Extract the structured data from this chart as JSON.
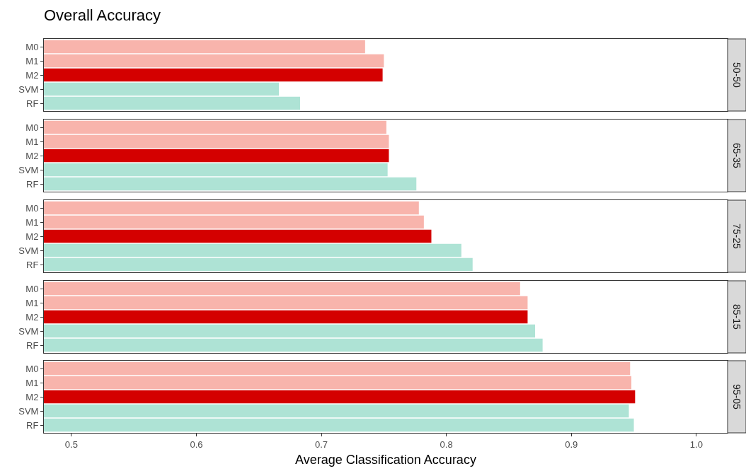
{
  "chart_data": [
    {
      "type": "bar",
      "title": "Overall Accuracy",
      "orientation": "horizontal",
      "categories": [
        "M0",
        "M1",
        "M2",
        "SVM",
        "RF"
      ],
      "values": [
        0.735,
        0.75,
        0.749,
        0.666,
        0.683
      ],
      "colors": [
        "#f8b4ac",
        "#f8b4ac",
        "#d40000",
        "#aee3d5",
        "#aee3d5"
      ],
      "xlim": [
        0.478,
        1.025
      ],
      "xticks": [
        0.5,
        0.6,
        0.7,
        0.8,
        0.9,
        1.0
      ],
      "tick_labels": "y",
      "grid": false,
      "annotations": [
        "50-50"
      ]
    },
    {
      "type": "bar",
      "orientation": "horizontal",
      "categories": [
        "M0",
        "M1",
        "M2",
        "SVM",
        "RF"
      ],
      "values": [
        0.752,
        0.754,
        0.754,
        0.753,
        0.776
      ],
      "colors": [
        "#f8b4ac",
        "#f8b4ac",
        "#d40000",
        "#aee3d5",
        "#aee3d5"
      ],
      "xlim": [
        0.478,
        1.025
      ],
      "xticks": [
        0.5,
        0.6,
        0.7,
        0.8,
        0.9,
        1.0
      ],
      "tick_labels": "y",
      "grid": false,
      "annotations": [
        "65-35"
      ]
    },
    {
      "type": "bar",
      "orientation": "horizontal",
      "categories": [
        "M0",
        "M1",
        "M2",
        "SVM",
        "RF"
      ],
      "values": [
        0.778,
        0.782,
        0.788,
        0.812,
        0.821
      ],
      "colors": [
        "#f8b4ac",
        "#f8b4ac",
        "#d40000",
        "#aee3d5",
        "#aee3d5"
      ],
      "xlim": [
        0.478,
        1.025
      ],
      "xticks": [
        0.5,
        0.6,
        0.7,
        0.8,
        0.9,
        1.0
      ],
      "tick_labels": "y",
      "grid": false,
      "annotations": [
        "75-25"
      ]
    },
    {
      "type": "bar",
      "orientation": "horizontal",
      "categories": [
        "M0",
        "M1",
        "M2",
        "SVM",
        "RF"
      ],
      "values": [
        0.859,
        0.865,
        0.865,
        0.871,
        0.877
      ],
      "colors": [
        "#f8b4ac",
        "#f8b4ac",
        "#d40000",
        "#aee3d5",
        "#aee3d5"
      ],
      "xlim": [
        0.478,
        1.025
      ],
      "xticks": [
        0.5,
        0.6,
        0.7,
        0.8,
        0.9,
        1.0
      ],
      "tick_labels": "y",
      "grid": false,
      "annotations": [
        "85-15"
      ]
    },
    {
      "type": "bar",
      "orientation": "horizontal",
      "xlabel": "Average Classification Accuracy",
      "categories": [
        "M0",
        "M1",
        "M2",
        "SVM",
        "RF"
      ],
      "values": [
        0.947,
        0.948,
        0.951,
        0.946,
        0.95
      ],
      "colors": [
        "#f8b4ac",
        "#f8b4ac",
        "#d40000",
        "#aee3d5",
        "#aee3d5"
      ],
      "xlim": [
        0.478,
        1.025
      ],
      "xticks": [
        0.5,
        0.6,
        0.7,
        0.8,
        0.9,
        {
          "value": 1,
          "label": "1.0"
        }
      ],
      "grid": false,
      "annotations": [
        "95-05"
      ]
    }
  ]
}
